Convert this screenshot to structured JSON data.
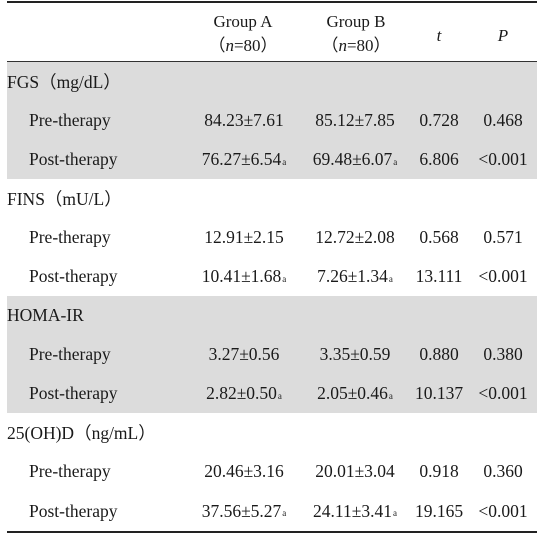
{
  "header": {
    "col_a": {
      "name": "Group A",
      "n_open": "（",
      "n_var": "n",
      "n_value": "=80）"
    },
    "col_b": {
      "name": "Group B",
      "n_open": "（",
      "n_var": "n",
      "n_value": "=80）"
    },
    "col_t": "t",
    "col_p": "P"
  },
  "sections": [
    {
      "title": "FGS（mg/dL）",
      "shaded": true,
      "rows": [
        {
          "label": "Pre-therapy",
          "a": "84.23±7.61",
          "a_mark": "",
          "b": "85.12±7.85",
          "b_mark": "",
          "t": "0.728",
          "p": "0.468"
        },
        {
          "label": "Post-therapy",
          "a": "76.27±6.54",
          "a_mark": "a",
          "b": "69.48±6.07",
          "b_mark": "a",
          "t": "6.806",
          "p": "<0.001"
        }
      ]
    },
    {
      "title": "FINS（mU/L）",
      "shaded": false,
      "rows": [
        {
          "label": "Pre-therapy",
          "a": "12.91±2.15",
          "a_mark": "",
          "b": "12.72±2.08",
          "b_mark": "",
          "t": "0.568",
          "p": "0.571"
        },
        {
          "label": "Post-therapy",
          "a": "10.41±1.68",
          "a_mark": "a",
          "b": "7.26±1.34",
          "b_mark": "a",
          "t": "13.111",
          "p": "<0.001"
        }
      ]
    },
    {
      "title": "HOMA-IR",
      "shaded": true,
      "rows": [
        {
          "label": "Pre-therapy",
          "a": "3.27±0.56",
          "a_mark": "",
          "b": "3.35±0.59",
          "b_mark": "",
          "t": "0.880",
          "p": "0.380"
        },
        {
          "label": "Post-therapy",
          "a": "2.82±0.50",
          "a_mark": "a",
          "b": "2.05±0.46",
          "b_mark": "a",
          "t": "10.137",
          "p": "<0.001"
        }
      ]
    },
    {
      "title": "25(OH)D（ng/mL）",
      "shaded": false,
      "rows": [
        {
          "label": "Pre-therapy",
          "a": "20.46±3.16",
          "a_mark": "",
          "b": "20.01±3.04",
          "b_mark": "",
          "t": "0.918",
          "p": "0.360"
        },
        {
          "label": "Post-therapy",
          "a": "37.56±5.27",
          "a_mark": "a",
          "b": "24.11±3.41",
          "b_mark": "a",
          "t": "19.165",
          "p": "<0.001"
        }
      ]
    }
  ],
  "colors": {
    "shade": "#dcdcdc",
    "rule": "#222222",
    "text": "#1a1a1a"
  }
}
